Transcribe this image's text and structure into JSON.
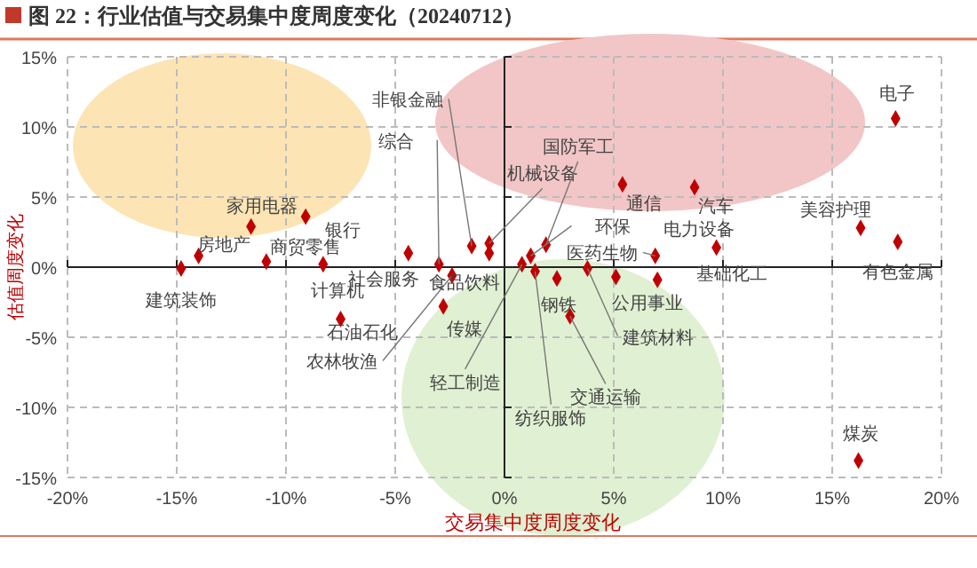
{
  "chart_data": {
    "type": "scatter",
    "title": "图 22：行业估值与交易集中度周度变化（20240712）",
    "xlabel": "交易集中度周度变化",
    "ylabel": "估值周度变化",
    "xlim": [
      -20,
      20
    ],
    "ylim": [
      -15,
      15
    ],
    "xticks": [
      {
        "value": -20,
        "label": "-20%"
      },
      {
        "value": -15,
        "label": "-15%"
      },
      {
        "value": -10,
        "label": "-10%"
      },
      {
        "value": -5,
        "label": "-5%"
      },
      {
        "value": 0,
        "label": "0%"
      },
      {
        "value": 5,
        "label": "5%"
      },
      {
        "value": 10,
        "label": "10%"
      },
      {
        "value": 15,
        "label": "15%"
      },
      {
        "value": 20,
        "label": "20%"
      }
    ],
    "yticks": [
      {
        "value": -15,
        "label": "-15%"
      },
      {
        "value": -10,
        "label": "-10%"
      },
      {
        "value": -5,
        "label": "-5%"
      },
      {
        "value": 0,
        "label": "0%"
      },
      {
        "value": 5,
        "label": "5%"
      },
      {
        "value": 10,
        "label": "10%"
      },
      {
        "value": 15,
        "label": "15%"
      }
    ],
    "grid": true,
    "marker": "diamond",
    "series": [
      {
        "color": "#c00000",
        "x": [
          -14.8,
          -14.0,
          -11.6,
          -10.9,
          -9.1,
          -8.3,
          -4.4,
          -3.0,
          -2.4,
          -1.5,
          -0.7,
          -0.7,
          -2.8,
          -7.5,
          1.9,
          1.2,
          0.8,
          1.4,
          2.4,
          3.0,
          3.8,
          6.9,
          5.1,
          7.0,
          9.7,
          5.4,
          8.7,
          17.9,
          16.3,
          18.0,
          16.2
        ],
        "values": [
          -0.1,
          0.8,
          2.9,
          0.4,
          3.6,
          0.2,
          1.0,
          0.2,
          -0.6,
          1.5,
          1.7,
          1.0,
          -2.8,
          -3.7,
          1.6,
          0.8,
          0.2,
          -0.3,
          -0.8,
          -3.5,
          -0.1,
          0.8,
          -0.7,
          -0.9,
          1.4,
          5.9,
          5.7,
          10.6,
          2.8,
          1.8,
          -13.8
        ]
      }
    ],
    "annotations": [
      {
        "text": "建筑装饰",
        "x": -14.8,
        "y": -0.1
      },
      {
        "text": "房地产",
        "x": -14.0,
        "y": 0.8
      },
      {
        "text": "家用电器",
        "x": -11.6,
        "y": 2.9
      },
      {
        "text": "商贸零售",
        "x": -10.9,
        "y": 0.4
      },
      {
        "text": "银行",
        "x": -9.1,
        "y": 3.6
      },
      {
        "text": "计算机",
        "x": -8.3,
        "y": 0.2
      },
      {
        "text": "社会服务",
        "x": -4.4,
        "y": 1.0
      },
      {
        "text": "综合",
        "x": -3.0,
        "y": 0.2
      },
      {
        "text": "农林牧渔",
        "x": -2.4,
        "y": -0.6
      },
      {
        "text": "非银金融",
        "x": -1.5,
        "y": 1.5
      },
      {
        "text": "机械设备",
        "x": -0.7,
        "y": 1.7
      },
      {
        "text": "食品饮料",
        "x": -0.7,
        "y": 1.0
      },
      {
        "text": "传媒",
        "x": -2.8,
        "y": -2.8
      },
      {
        "text": "石油石化",
        "x": -7.5,
        "y": -3.7
      },
      {
        "text": "国防军工",
        "x": 1.9,
        "y": 1.6
      },
      {
        "text": "环保",
        "x": 1.2,
        "y": 0.8
      },
      {
        "text": "轻工制造",
        "x": 0.8,
        "y": 0.2
      },
      {
        "text": "纺织服饰",
        "x": 1.4,
        "y": -0.3
      },
      {
        "text": "钢铁",
        "x": 2.4,
        "y": -0.8
      },
      {
        "text": "交通运输",
        "x": 3.0,
        "y": -3.5
      },
      {
        "text": "建筑材料",
        "x": 3.8,
        "y": -0.1
      },
      {
        "text": "医药生物",
        "x": 6.9,
        "y": 0.8
      },
      {
        "text": "公用事业",
        "x": 5.1,
        "y": -0.7
      },
      {
        "text": "基础化工",
        "x": 7.0,
        "y": -0.9
      },
      {
        "text": "电力设备",
        "x": 9.7,
        "y": 1.4
      },
      {
        "text": "通信",
        "x": 5.4,
        "y": 5.9
      },
      {
        "text": "汽车",
        "x": 8.7,
        "y": 5.7
      },
      {
        "text": "电子",
        "x": 17.9,
        "y": 10.6
      },
      {
        "text": "美容护理",
        "x": 16.3,
        "y": 2.8
      },
      {
        "text": "有色金属",
        "x": 18.0,
        "y": 1.8
      },
      {
        "text": "煤炭",
        "x": 16.2,
        "y": -13.8
      }
    ]
  }
}
